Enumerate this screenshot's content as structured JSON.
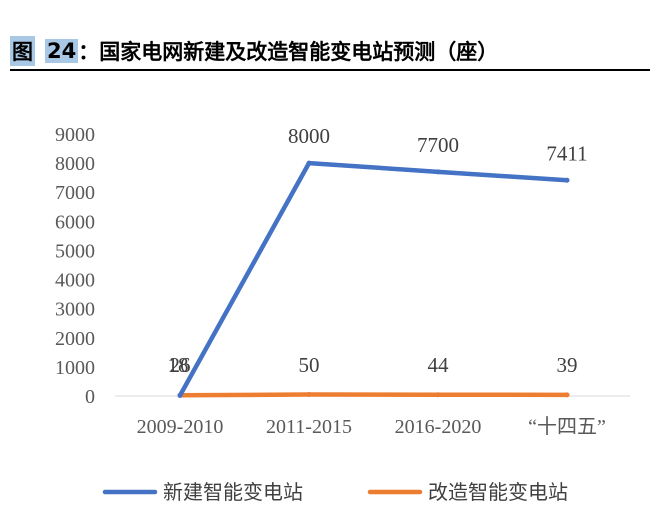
{
  "header": {
    "fig_label": "图",
    "fig_number": "24",
    "fig_title": "：国家电网新建及改造智能变电站预测（座）"
  },
  "chart_data": {
    "type": "line",
    "title": "",
    "xlabel": "",
    "ylabel": "",
    "categories": [
      "2009-2010",
      "2011-2015",
      "2016-2020",
      "“十四五”"
    ],
    "series": [
      {
        "name": "新建智能变电站",
        "values": [
          18,
          8000,
          7700,
          7411
        ],
        "color": "#4472C4",
        "labels": [
          "18",
          "8000",
          "7700",
          "7411"
        ]
      },
      {
        "name": "改造智能变电站",
        "values": [
          26,
          50,
          44,
          39
        ],
        "color": "#ED7D31",
        "labels": [
          "26",
          "50",
          "44",
          "39"
        ]
      }
    ],
    "ylim": [
      0,
      9000
    ],
    "yticks": [
      0,
      1000,
      2000,
      3000,
      4000,
      5000,
      6000,
      7000,
      8000,
      9000
    ],
    "grid": false,
    "legend": "bottom"
  }
}
